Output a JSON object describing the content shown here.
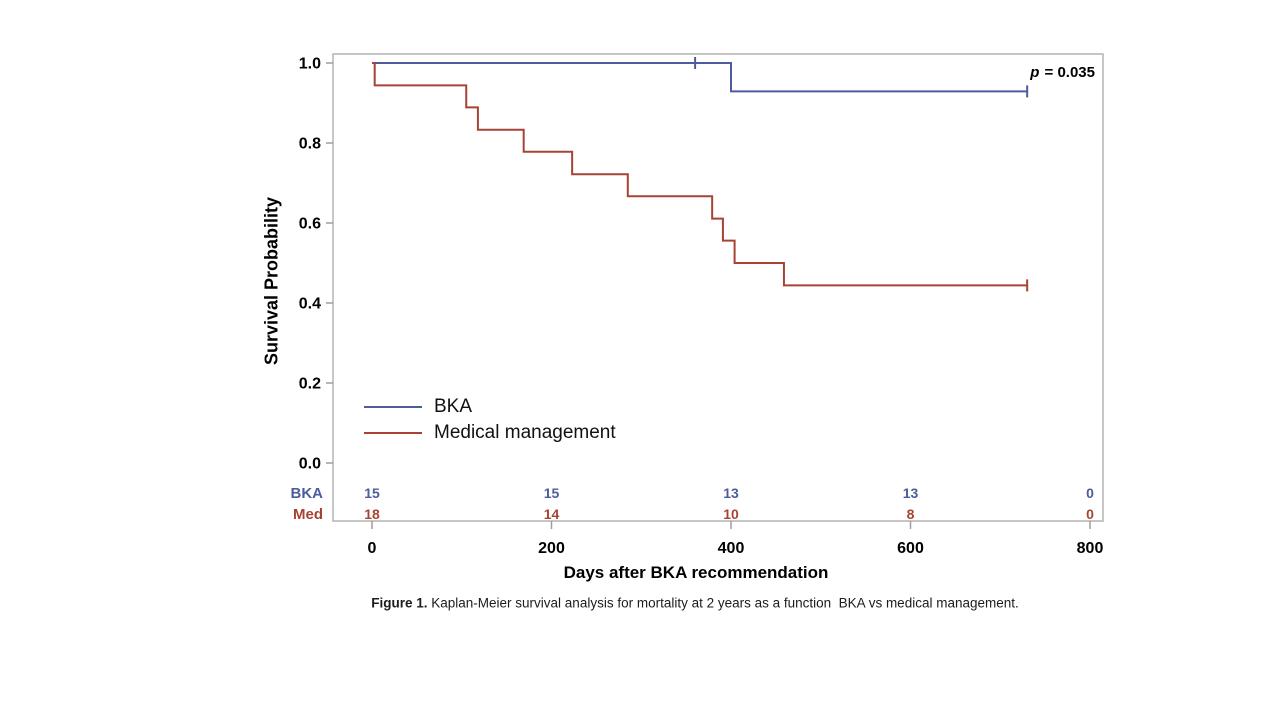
{
  "figure": {
    "y_axis_title": "Survival Probability",
    "x_axis_title": "Days after BKA recommendation",
    "p_italic": "p",
    "p_rest": " = 0.035",
    "caption_bold": "Figure 1.",
    "caption_text": " Kaplan-Meier survival analysis for mortality at 2 years as a function  BKA vs medical management."
  },
  "chart_data": {
    "type": "line",
    "subtype": "kaplan-meier-step",
    "title": "",
    "xlabel": "Days after BKA recommendation",
    "ylabel": "Survival Probability",
    "xlim": [
      0,
      800
    ],
    "ylim": [
      0.0,
      1.0
    ],
    "x_ticks": [
      0,
      200,
      400,
      600,
      800
    ],
    "y_ticks": [
      1.0,
      0.8,
      0.6,
      0.4,
      0.2,
      0.0
    ],
    "grid": false,
    "legend_position": "inside-bottom-left",
    "p_value_annotation": "p = 0.035",
    "frame_color": "#b3b3b3",
    "tick_color": "#9e9e9e",
    "series": [
      {
        "name": "BKA",
        "color": "#4c5c9c",
        "steps": [
          [
            0,
            1.0
          ],
          [
            400,
            0.929
          ]
        ],
        "end_time": 730,
        "censors": [
          [
            360,
            1.0
          ],
          [
            730,
            0.929
          ]
        ]
      },
      {
        "name": "Medical management",
        "color": "#a64334",
        "steps": [
          [
            0,
            1.0
          ],
          [
            3,
            0.944
          ],
          [
            105,
            0.889
          ],
          [
            118,
            0.833
          ],
          [
            169,
            0.778
          ],
          [
            223,
            0.722
          ],
          [
            285,
            0.667
          ],
          [
            379,
            0.611
          ],
          [
            391,
            0.556
          ],
          [
            404,
            0.5
          ],
          [
            459,
            0.444
          ]
        ],
        "end_time": 730,
        "censors": [
          [
            730,
            0.444
          ]
        ]
      }
    ],
    "at_risk": {
      "times": [
        0,
        200,
        400,
        600,
        800
      ],
      "rows": [
        {
          "label": "BKA",
          "color": "#4c5c9c",
          "values": [
            "15",
            "15",
            "13",
            "13",
            "0"
          ]
        },
        {
          "label": "Med",
          "color": "#a64334",
          "values": [
            "18",
            "14",
            "10",
            "8",
            "0"
          ]
        }
      ]
    }
  }
}
